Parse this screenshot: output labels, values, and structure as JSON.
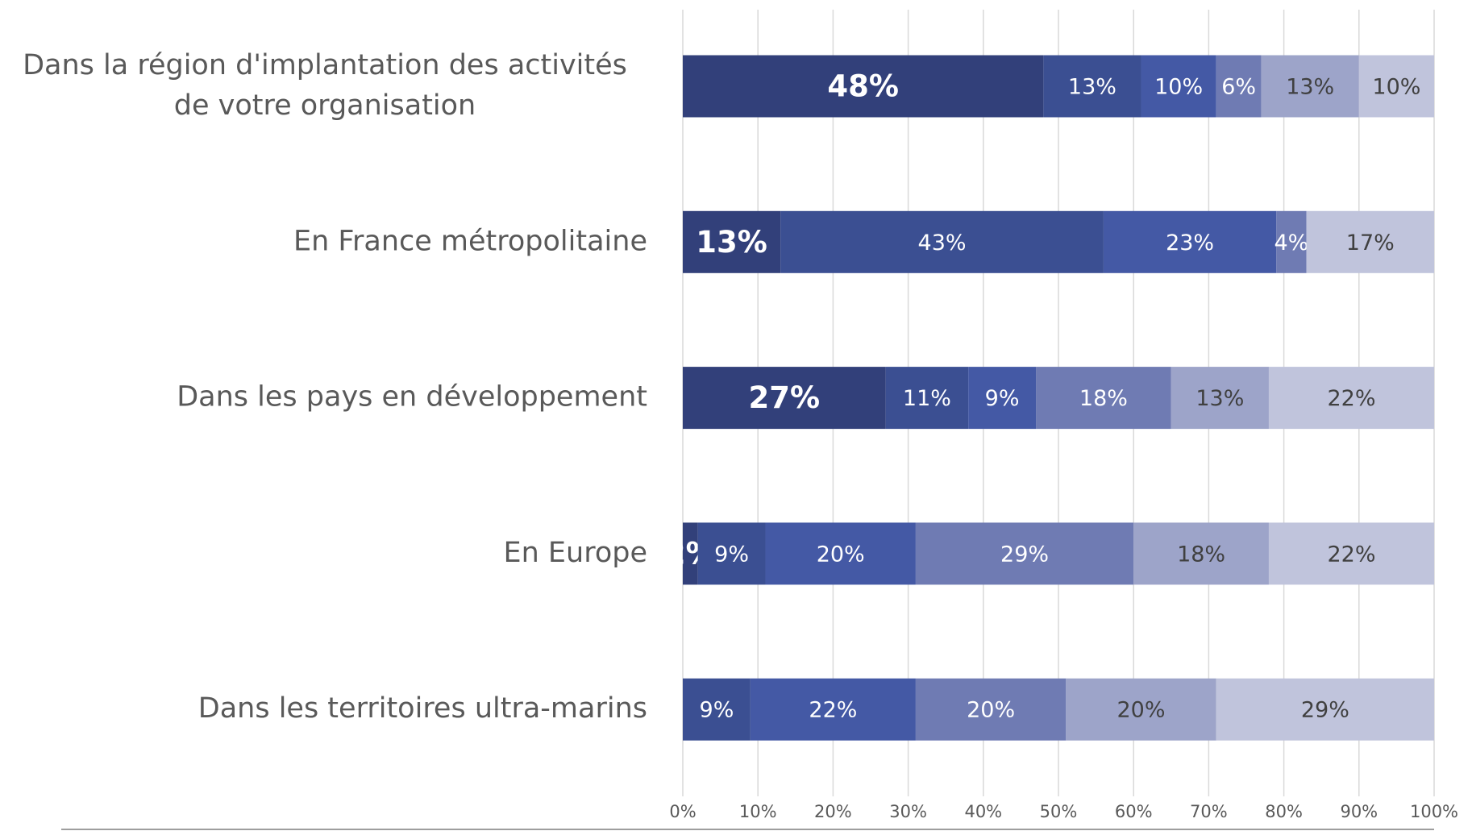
{
  "chart_data": {
    "type": "stacked-bar-horizontal",
    "categories": [
      "Dans la région d'implantation des activités de votre organisation",
      "En France métropolitaine",
      "Dans les pays en développement",
      "En Europe",
      "Dans les territoires ultra-marins"
    ],
    "series": [
      {
        "color": "#32407a",
        "values": [
          48,
          13,
          27,
          2,
          null
        ],
        "value_labels": [
          "48%",
          "13%",
          "27%",
          "2%",
          null
        ]
      },
      {
        "color": "#3b4f92",
        "values": [
          13,
          43,
          11,
          9,
          9
        ],
        "value_labels": [
          "13%",
          "43%",
          "11%",
          "9%",
          "9%"
        ]
      },
      {
        "color": "#4459a5",
        "values": [
          10,
          23,
          9,
          20,
          22
        ],
        "value_labels": [
          "10%",
          "23%",
          "9%",
          "20%",
          "22%"
        ]
      },
      {
        "color": "#6f7bb3",
        "values": [
          6,
          4,
          18,
          29,
          20
        ],
        "value_labels": [
          "6%",
          "4%",
          "18%",
          "29%",
          "20%"
        ]
      },
      {
        "color": "#9da4c9",
        "values": [
          13,
          null,
          13,
          18,
          20
        ],
        "value_labels": [
          "13%",
          null,
          "13%",
          "18%",
          "20%"
        ]
      },
      {
        "color": "#c0c4dc",
        "values": [
          10,
          17,
          22,
          22,
          29
        ],
        "value_labels": [
          "10%",
          "17%",
          "22%",
          "22%",
          "29%"
        ]
      }
    ],
    "xlim": [
      0,
      100
    ],
    "xticks": [
      {
        "value": 0,
        "label": "0%"
      },
      {
        "value": 10,
        "label": "10%"
      },
      {
        "value": 20,
        "label": "20%"
      },
      {
        "value": 30,
        "label": "30%"
      },
      {
        "value": 40,
        "label": "40%"
      },
      {
        "value": 50,
        "label": "50%"
      },
      {
        "value": 60,
        "label": "60%"
      },
      {
        "value": 70,
        "label": "70%"
      },
      {
        "value": 80,
        "label": "80%"
      },
      {
        "value": 90,
        "label": "90%"
      },
      {
        "value": 100,
        "label": "100%"
      }
    ],
    "grid": true
  }
}
